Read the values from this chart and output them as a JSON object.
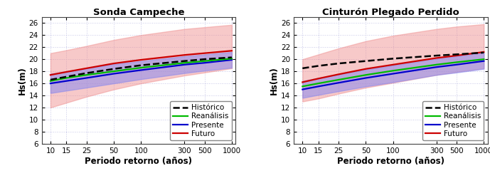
{
  "title_left": "Sonda Campeche",
  "title_right": "Cinturón Plegado Perdido",
  "xlabel": "Periodo retorno (años)",
  "ylabel": "Hs(m)",
  "x_ticks": [
    10,
    15,
    25,
    50,
    100,
    300,
    500,
    1000
  ],
  "ylim": [
    6,
    27
  ],
  "yticks": [
    6,
    8,
    10,
    12,
    14,
    16,
    18,
    20,
    22,
    24,
    26
  ],
  "x_periods": [
    10,
    15,
    25,
    50,
    100,
    300,
    500,
    1000
  ],
  "sc_historico": [
    16.6,
    17.1,
    17.7,
    18.4,
    19.0,
    19.7,
    20.0,
    20.3
  ],
  "sc_reanalisis": [
    16.4,
    16.9,
    17.4,
    18.0,
    18.6,
    19.4,
    19.7,
    20.1
  ],
  "sc_presente": [
    16.0,
    16.4,
    16.9,
    17.6,
    18.2,
    19.1,
    19.4,
    19.9
  ],
  "sc_presente_lo": [
    14.4,
    14.8,
    15.3,
    16.0,
    16.7,
    17.7,
    18.1,
    18.6
  ],
  "sc_presente_hi": [
    17.6,
    18.0,
    18.5,
    19.2,
    19.7,
    20.5,
    20.8,
    21.2
  ],
  "sc_futuro": [
    17.4,
    17.9,
    18.5,
    19.3,
    19.9,
    20.7,
    21.0,
    21.4
  ],
  "sc_futuro_lo": [
    12.0,
    12.8,
    13.8,
    15.0,
    16.0,
    17.3,
    17.8,
    18.5
  ],
  "sc_futuro_hi": [
    21.0,
    21.5,
    22.2,
    23.2,
    24.0,
    25.0,
    25.3,
    25.7
  ],
  "cpp_historico": [
    18.5,
    18.9,
    19.3,
    19.7,
    20.1,
    20.6,
    20.8,
    21.1
  ],
  "cpp_reanalisis": [
    15.5,
    16.0,
    16.6,
    17.4,
    18.1,
    19.1,
    19.5,
    20.0
  ],
  "cpp_presente": [
    15.0,
    15.5,
    16.1,
    16.9,
    17.6,
    18.7,
    19.1,
    19.7
  ],
  "cpp_presente_lo": [
    13.6,
    14.1,
    14.7,
    15.5,
    16.2,
    17.4,
    17.8,
    18.4
  ],
  "cpp_presente_hi": [
    16.4,
    16.9,
    17.5,
    18.3,
    19.0,
    20.1,
    20.5,
    21.1
  ],
  "cpp_futuro": [
    16.2,
    16.8,
    17.5,
    18.4,
    19.1,
    20.2,
    20.6,
    21.2
  ],
  "cpp_futuro_lo": [
    13.0,
    13.5,
    14.3,
    15.3,
    16.1,
    17.4,
    17.9,
    18.5
  ],
  "cpp_futuro_hi": [
    20.0,
    20.8,
    21.8,
    23.0,
    23.9,
    25.0,
    25.4,
    25.8
  ],
  "color_historico": "#000000",
  "color_reanalisis": "#00bb00",
  "color_presente": "#0000cc",
  "color_futuro": "#cc0000",
  "color_presente_fill": "#8888ee",
  "color_futuro_fill": "#ee8888",
  "background_color": "#ffffff",
  "grid_color": "#c8c8e8",
  "grid_linestyle": ":"
}
